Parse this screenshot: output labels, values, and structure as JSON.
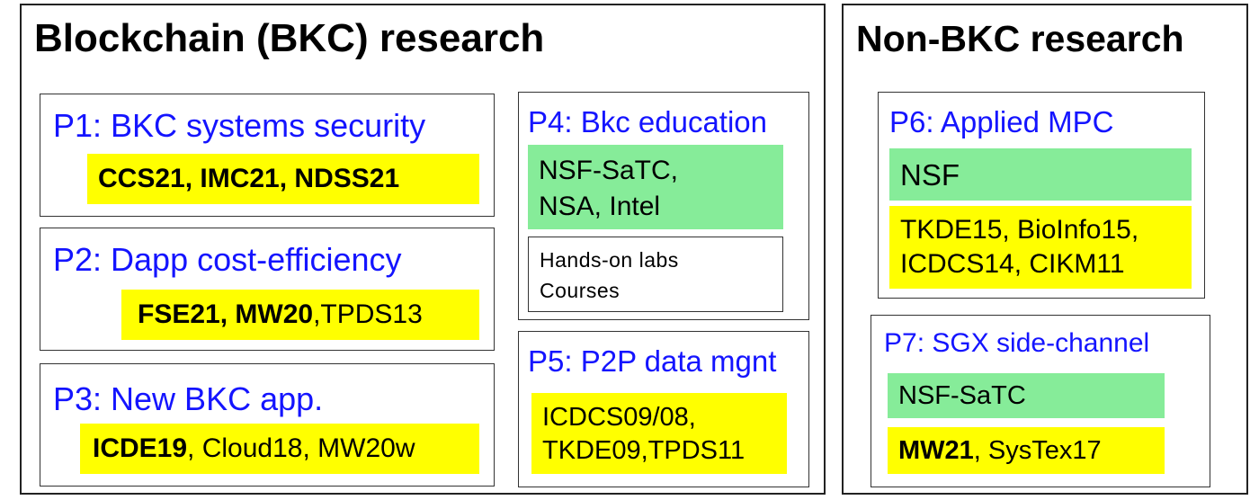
{
  "bkc": {
    "title": "Blockchain (BKC) research",
    "p1": {
      "title": "P1: BKC systems security",
      "pubs_bold": "CCS21, IMC21, NDSS21",
      "pubs_normal": ""
    },
    "p2": {
      "title": "P2: Dapp cost-efficiency",
      "pubs_bold": "FSE21, MW20",
      "pubs_normal": ",TPDS13"
    },
    "p3": {
      "title": "P3: New BKC app.",
      "pubs_bold": "ICDE19",
      "pubs_normal": ", Cloud18, MW20w"
    },
    "p4": {
      "title": "P4: Bkc education",
      "funding_line1": "NSF-SaTC,",
      "funding_line2": "NSA, Intel",
      "labs_line1": "Hands-on labs",
      "labs_line2": "Courses"
    },
    "p5": {
      "title": "P5: P2P data mgnt",
      "pubs_line1": "ICDCS09/08,",
      "pubs_line2": "TKDE09,TPDS11"
    }
  },
  "nonbkc": {
    "title": "Non-BKC research",
    "p6": {
      "title": "P6: Applied MPC",
      "funding": "NSF",
      "pubs_line1": "TKDE15, BioInfo15,",
      "pubs_line2": "ICDCS14, CIKM11"
    },
    "p7": {
      "title": "P7: SGX side-channel",
      "funding": "NSF-SaTC",
      "pubs_bold": "MW21",
      "pubs_normal": ", SysTex17"
    }
  },
  "colors": {
    "title_blue": "#1414ff",
    "highlight_yellow": "#ffff00",
    "highlight_green": "#86ec99"
  }
}
